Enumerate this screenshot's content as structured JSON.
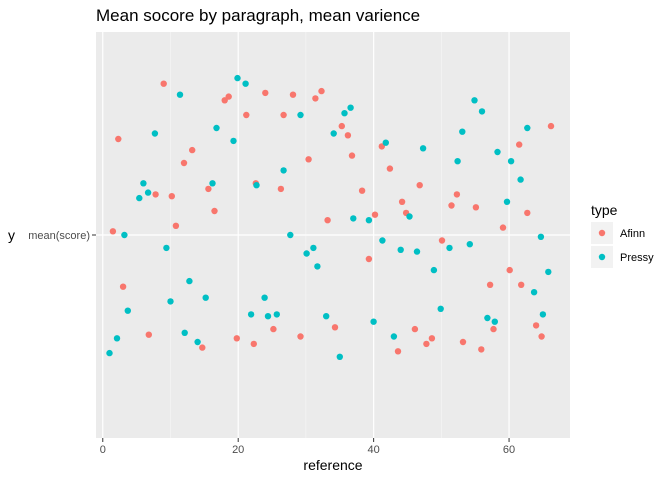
{
  "chart_data": {
    "type": "scatter",
    "title": "Mean socore by paragraph, mean varience",
    "xlabel": "reference",
    "ylabel": "y",
    "y_tick_label": "mean(score)",
    "x_ticks": [
      0,
      20,
      40,
      60
    ],
    "xlim": [
      -1,
      69
    ],
    "ylim": [
      -1.2,
      1.0
    ],
    "grid": true,
    "legend": {
      "title": "type",
      "position": "right"
    },
    "series": [
      {
        "name": "Afinn",
        "color": "#F8766D",
        "points": [
          [
            1.5,
            -0.08
          ],
          [
            2.3,
            0.42
          ],
          [
            3.0,
            -0.38
          ],
          [
            6.8,
            -0.64
          ],
          [
            7.8,
            0.12
          ],
          [
            9.0,
            0.72
          ],
          [
            10.2,
            0.11
          ],
          [
            10.8,
            -0.05
          ],
          [
            12.0,
            0.29
          ],
          [
            13.2,
            0.36
          ],
          [
            14.7,
            -0.71
          ],
          [
            15.6,
            0.15
          ],
          [
            16.5,
            0.03
          ],
          [
            18.0,
            0.63
          ],
          [
            18.6,
            0.65
          ],
          [
            19.8,
            -0.66
          ],
          [
            21.2,
            0.55
          ],
          [
            22.3,
            -0.69
          ],
          [
            22.6,
            0.18
          ],
          [
            24.0,
            0.67
          ],
          [
            25.2,
            -0.61
          ],
          [
            26.3,
            0.15
          ],
          [
            26.7,
            0.55
          ],
          [
            28.1,
            0.66
          ],
          [
            29.2,
            -0.65
          ],
          [
            30.4,
            0.31
          ],
          [
            31.4,
            0.64
          ],
          [
            32.3,
            0.68
          ],
          [
            33.2,
            -0.02
          ],
          [
            34.3,
            -0.6
          ],
          [
            35.3,
            0.49
          ],
          [
            36.2,
            0.44
          ],
          [
            36.8,
            0.33
          ],
          [
            38.3,
            0.14
          ],
          [
            39.3,
            -0.23
          ],
          [
            40.2,
            0.01
          ],
          [
            41.2,
            0.38
          ],
          [
            42.4,
            0.26
          ],
          [
            43.6,
            -0.73
          ],
          [
            44.2,
            0.08
          ],
          [
            44.8,
            0.02
          ],
          [
            46.1,
            -0.61
          ],
          [
            46.8,
            0.17
          ],
          [
            47.8,
            -0.69
          ],
          [
            48.6,
            -0.66
          ],
          [
            50.1,
            -0.13
          ],
          [
            51.5,
            0.06
          ],
          [
            52.3,
            0.12
          ],
          [
            53.2,
            -0.68
          ],
          [
            55.1,
            0.05
          ],
          [
            55.9,
            -0.72
          ],
          [
            57.2,
            -0.37
          ],
          [
            57.7,
            -0.61
          ],
          [
            59.1,
            -0.06
          ],
          [
            60.1,
            -0.29
          ],
          [
            61.5,
            0.39
          ],
          [
            61.8,
            -0.37
          ],
          [
            62.7,
            0.02
          ],
          [
            64.0,
            -0.59
          ],
          [
            64.8,
            -0.65
          ],
          [
            66.2,
            0.49
          ]
        ]
      },
      {
        "name": "Pressy",
        "color": "#00BFC4",
        "points": [
          [
            1.0,
            -0.74
          ],
          [
            2.1,
            -0.66
          ],
          [
            3.2,
            -0.1
          ],
          [
            3.7,
            -0.51
          ],
          [
            5.4,
            0.1
          ],
          [
            6.0,
            0.18
          ],
          [
            6.7,
            0.13
          ],
          [
            7.7,
            0.45
          ],
          [
            9.4,
            -0.17
          ],
          [
            10.0,
            -0.46
          ],
          [
            11.4,
            0.66
          ],
          [
            12.1,
            -0.63
          ],
          [
            12.8,
            -0.35
          ],
          [
            14.0,
            -0.68
          ],
          [
            15.2,
            -0.44
          ],
          [
            16.2,
            0.18
          ],
          [
            16.8,
            0.48
          ],
          [
            19.3,
            0.41
          ],
          [
            19.9,
            0.75
          ],
          [
            21.1,
            0.72
          ],
          [
            21.9,
            -0.53
          ],
          [
            22.7,
            0.17
          ],
          [
            23.9,
            -0.44
          ],
          [
            24.4,
            -0.54
          ],
          [
            25.7,
            -0.53
          ],
          [
            26.7,
            0.25
          ],
          [
            27.7,
            -0.1
          ],
          [
            29.2,
            0.55
          ],
          [
            30.1,
            -0.2
          ],
          [
            31.1,
            -0.17
          ],
          [
            31.7,
            -0.27
          ],
          [
            33.0,
            -0.54
          ],
          [
            34.1,
            0.45
          ],
          [
            35.0,
            -0.76
          ],
          [
            35.7,
            0.56
          ],
          [
            36.6,
            0.59
          ],
          [
            37.0,
            -0.01
          ],
          [
            39.3,
            -0.02
          ],
          [
            40.0,
            -0.57
          ],
          [
            41.3,
            -0.13
          ],
          [
            41.8,
            0.4
          ],
          [
            43.0,
            -0.65
          ],
          [
            44.0,
            -0.18
          ],
          [
            45.3,
            0.0
          ],
          [
            46.4,
            -0.19
          ],
          [
            47.3,
            0.37
          ],
          [
            48.9,
            -0.29
          ],
          [
            49.9,
            -0.5
          ],
          [
            51.2,
            -0.17
          ],
          [
            52.4,
            0.3
          ],
          [
            53.1,
            0.46
          ],
          [
            54.2,
            -0.15
          ],
          [
            54.9,
            0.63
          ],
          [
            56.0,
            0.57
          ],
          [
            56.8,
            -0.55
          ],
          [
            57.9,
            -0.57
          ],
          [
            58.3,
            0.35
          ],
          [
            59.7,
            0.08
          ],
          [
            60.3,
            0.3
          ],
          [
            61.7,
            0.2
          ],
          [
            62.7,
            0.48
          ],
          [
            63.7,
            -0.41
          ],
          [
            64.7,
            -0.11
          ],
          [
            65.0,
            -0.53
          ],
          [
            65.8,
            -0.3
          ]
        ]
      }
    ]
  }
}
